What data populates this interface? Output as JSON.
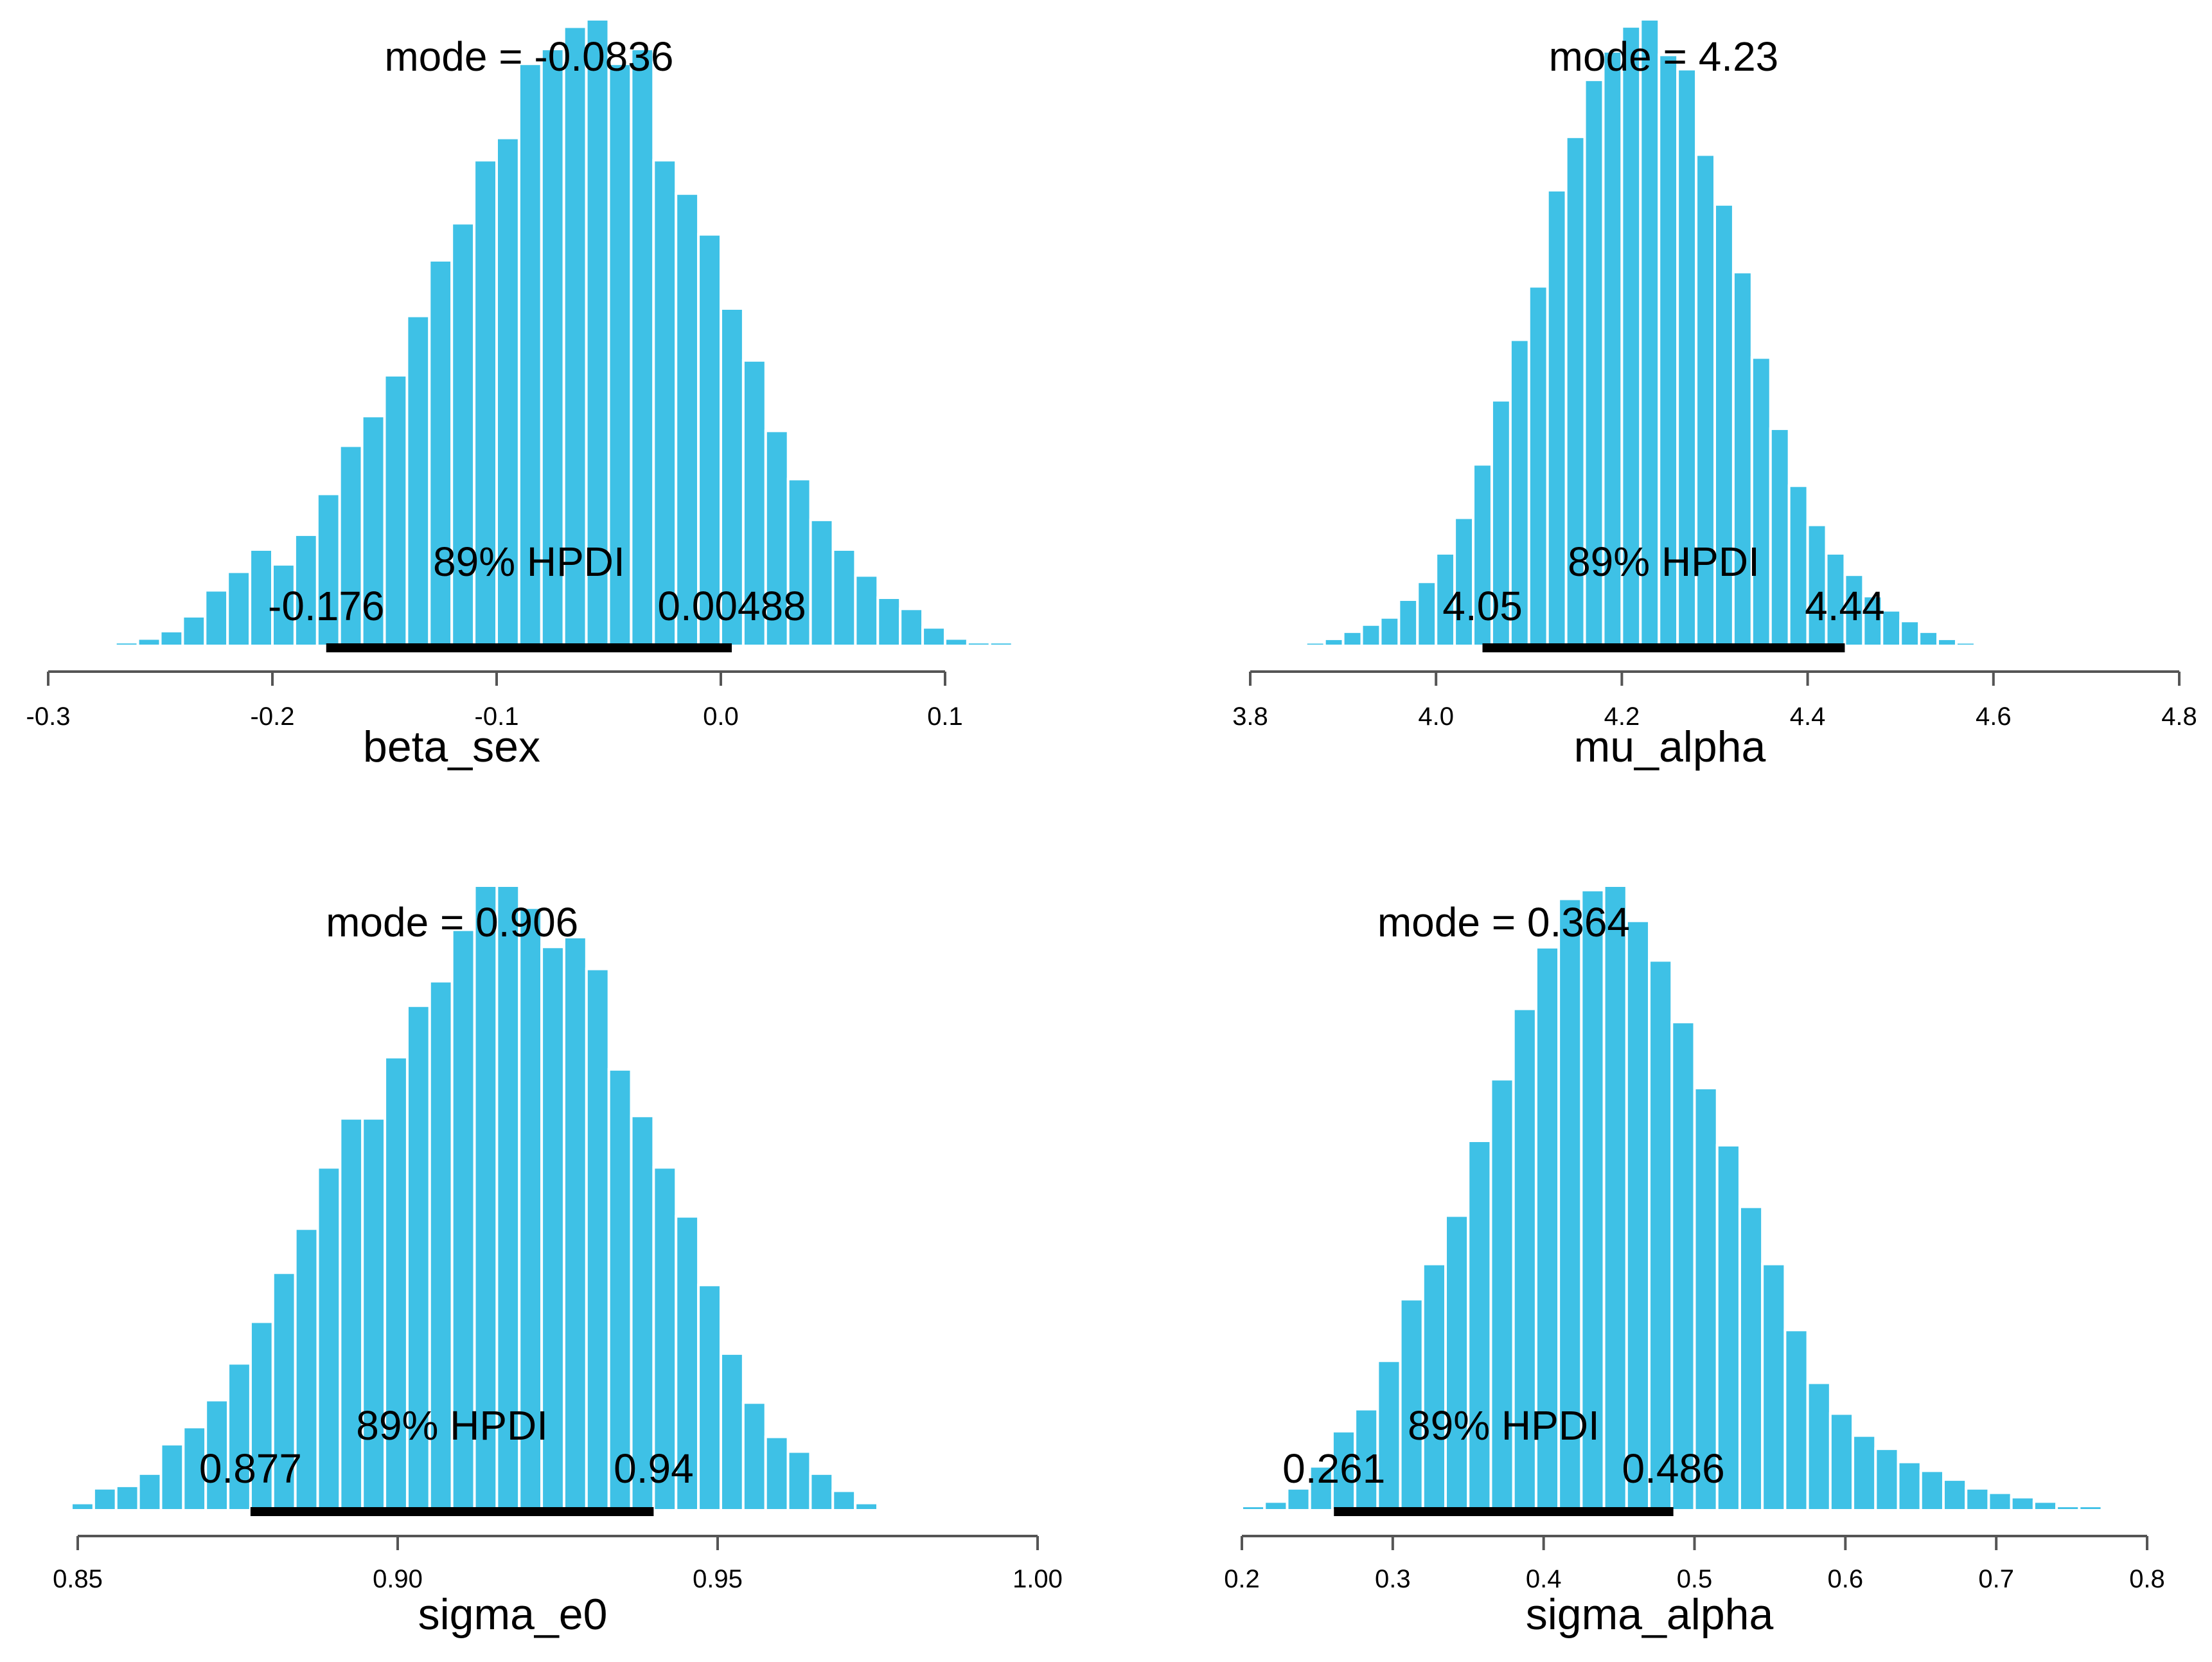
{
  "figure": {
    "background": "#ffffff",
    "bar_color": "#3ec1e6",
    "hpdi_color": "#000000"
  },
  "chart_data": [
    {
      "type": "bar",
      "title": "",
      "xlabel": "beta_sex",
      "ylabel": "",
      "xlim": [
        -0.3,
        0.1
      ],
      "ticks": [
        -0.3,
        -0.2,
        -0.1,
        0.0,
        0.1
      ],
      "tick_labels": [
        "-0.3",
        "-0.2",
        "-0.1",
        "0.0",
        "0.1"
      ],
      "bin_start": -0.27,
      "bin_width": 0.01,
      "values": [
        1,
        2,
        4,
        8,
        15,
        20,
        26,
        22,
        30,
        41,
        54,
        62,
        73,
        89,
        104,
        114,
        131,
        137,
        157,
        161,
        167,
        169,
        157,
        161,
        131,
        122,
        111,
        91,
        77,
        58,
        45,
        34,
        26,
        19,
        13,
        10,
        5,
        2,
        1,
        1
      ],
      "mode_label": "mode = -0.0836",
      "hpdi_label": "89% HPDI",
      "hpdi": [
        -0.176,
        0.00488
      ],
      "hpdi_low_label": "-0.176",
      "hpdi_high_label": "0.00488"
    },
    {
      "type": "bar",
      "title": "",
      "xlabel": "mu_alpha",
      "ylabel": "",
      "xlim": [
        3.8,
        4.8
      ],
      "ticks": [
        3.8,
        4.0,
        4.2,
        4.4,
        4.6,
        4.8
      ],
      "tick_labels": [
        "3.8",
        "4.0",
        "4.2",
        "4.4",
        "4.6",
        "4.8"
      ],
      "bin_start": 3.86,
      "bin_width": 0.02,
      "values": [
        1,
        2,
        4,
        6,
        8,
        13,
        18,
        26,
        36,
        51,
        69,
        86,
        101,
        128,
        143,
        159,
        167,
        174,
        176,
        166,
        162,
        138,
        124,
        105,
        81,
        61,
        45,
        34,
        26,
        20,
        14,
        10,
        7,
        4,
        2,
        1
      ],
      "mode_label": "mode = 4.23",
      "hpdi_label": "89% HPDI",
      "hpdi": [
        4.05,
        4.44
      ],
      "hpdi_low_label": "4.05",
      "hpdi_high_label": "4.44"
    },
    {
      "type": "bar",
      "title": "",
      "xlabel": "sigma_e0",
      "ylabel": "",
      "xlim": [
        0.85,
        1.0
      ],
      "ticks": [
        0.85,
        0.9,
        0.95,
        1.0
      ],
      "tick_labels": [
        "0.85",
        "0.90",
        "0.95",
        "1.00"
      ],
      "bin_start": 0.849,
      "bin_width": 0.0035,
      "values": [
        3,
        9,
        10,
        15,
        27,
        34,
        45,
        60,
        77,
        97,
        115,
        140,
        160,
        160,
        185,
        206,
        216,
        237,
        255,
        255,
        246,
        230,
        234,
        221,
        180,
        161,
        140,
        120,
        92,
        64,
        44,
        30,
        24,
        15,
        8,
        3
      ],
      "mode_label": "mode = 0.906",
      "hpdi_label": "89% HPDI",
      "hpdi": [
        0.877,
        0.94
      ],
      "hpdi_low_label": "0.877",
      "hpdi_high_label": "0.94"
    },
    {
      "type": "bar",
      "title": "",
      "xlabel": "sigma_alpha",
      "ylabel": "",
      "xlim": [
        0.2,
        0.8
      ],
      "ticks": [
        0.2,
        0.3,
        0.4,
        0.5,
        0.6,
        0.7,
        0.8
      ],
      "tick_labels": [
        "0.2",
        "0.3",
        "0.4",
        "0.5",
        "0.6",
        "0.7",
        "0.8"
      ],
      "bin_start": 0.2,
      "bin_width": 0.015,
      "values": [
        1,
        2,
        5,
        10,
        18,
        23,
        34,
        48,
        56,
        67,
        84,
        98,
        114,
        128,
        139,
        141,
        142,
        134,
        125,
        111,
        96,
        83,
        69,
        56,
        41,
        29,
        22,
        17,
        14,
        11,
        9,
        7,
        5,
        4,
        3,
        2,
        1,
        1
      ],
      "mode_label": "mode = 0.364",
      "hpdi_label": "89% HPDI",
      "hpdi": [
        0.261,
        0.486
      ],
      "hpdi_low_label": "0.261",
      "hpdi_high_label": "0.486"
    }
  ]
}
